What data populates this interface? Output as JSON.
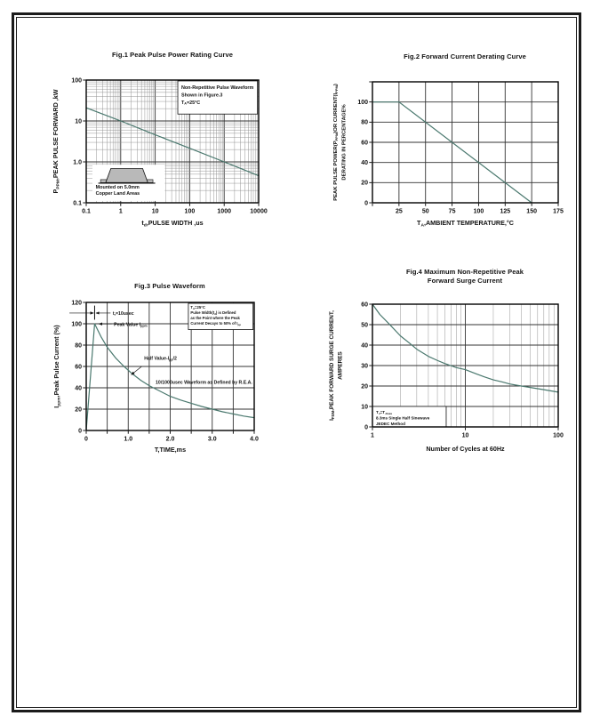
{
  "page": {
    "background": "#ffffff",
    "frame_color": "#1b1b1b"
  },
  "colors": {
    "curve": "#4a786e",
    "grid_major": "#333333",
    "grid_minor": "#8a8a8a",
    "axis": "#000000",
    "text": "#111111"
  },
  "chart_data": [
    {
      "id": "fig1",
      "type": "line",
      "title": "Fig.1  Peak Pulse Power Rating Curve",
      "x": {
        "scale": "log",
        "min": 0.1,
        "max": 10000,
        "ticks": [
          "0.1",
          "1",
          "10",
          "100",
          "1000",
          "10000"
        ],
        "label": "t_{d},PULSE WIDTH ,us"
      },
      "y": {
        "scale": "log",
        "min": 0.1,
        "max": 100,
        "ticks": [
          "100",
          "10",
          "1.0",
          "0.1"
        ],
        "label_lines": [
          "P_{PPM},PEAK PULSE FORWARD ,kW"
        ],
        "label_font": 7.2
      },
      "series": [
        {
          "name": "peak-pulse-power-rating",
          "points": [
            [
              0.1,
              21
            ],
            [
              1,
              10
            ],
            [
              10,
              4.6
            ],
            [
              100,
              2.15
            ],
            [
              1000,
              1.0
            ],
            [
              10000,
              0.46
            ]
          ]
        }
      ],
      "annotations": [
        {
          "kind": "box",
          "fx": 0.531,
          "fy": 0.007,
          "fw": 0.462,
          "fh": 0.27,
          "border": true,
          "font": 5.4,
          "line_h": 8.4,
          "pad_x": 4,
          "pad_y": 9,
          "lines": [
            "Non-Repetitive Pulse Waveform",
            "Shown in Figure.3",
            "T_{A}=25°C"
          ]
        },
        {
          "kind": "box",
          "fx": 0.036,
          "fy": 0.69,
          "fw": 0.42,
          "fh": 0.295,
          "border": false,
          "lines": []
        },
        {
          "kind": "icon",
          "icon": "smd-package-icon",
          "fx": 0.07,
          "fy": 0.705,
          "fw": 0.33,
          "fh": 0.135
        },
        {
          "kind": "text",
          "fx": 0.055,
          "fy": 0.885,
          "anchor": "start",
          "font": 5.4,
          "line_h": 6.8,
          "lines": [
            "Mounted on 5.0mm",
            "Copper Land Areas"
          ]
        }
      ],
      "layout": {
        "plot": {
          "l": 67,
          "t": 40,
          "r": 261,
          "b": 178
        },
        "ylabel_x": 28,
        "xlabel_dy": 25
      }
    },
    {
      "id": "fig2",
      "type": "line",
      "title": "Fig.2  Forward Current Derating Curve",
      "x": {
        "scale": "linear",
        "min": 0,
        "max": 175,
        "grid_step": 25,
        "ticks": [
          "25",
          "50",
          "75",
          "100",
          "125",
          "150",
          "175"
        ],
        "label": "T_{A},AMBIENT TEMPERATURE,°C"
      },
      "y": {
        "scale": "linear",
        "min": 0,
        "max": 120,
        "grid_step": 20,
        "ticks": [
          "0",
          "20",
          "40",
          "60",
          "80",
          "100"
        ],
        "label_lines": [
          "PEAK PULSE POWER(P_{PPM})OR CURRENT(I_{PPM})",
          "DERATING IN PERCENTAGE%"
        ],
        "label_font": 5.9
      },
      "series": [
        {
          "name": "forward-current-derating",
          "points": [
            [
              0,
              100
            ],
            [
              25,
              100
            ],
            [
              150,
              0
            ]
          ]
        }
      ],
      "annotations": [],
      "layout": {
        "plot": {
          "l": 55,
          "t": 42,
          "r": 264,
          "b": 178
        },
        "ylabel_x": 8,
        "xlabel_dy": 25
      }
    },
    {
      "id": "fig3",
      "type": "line",
      "title": "Fig.3  Pulse Waveform",
      "x": {
        "scale": "linear",
        "min": 0,
        "max": 4,
        "grid_step": 0.5,
        "ticks": [
          "0",
          "1.0",
          "2.0",
          "3.0",
          "4.0"
        ],
        "label": "T,TIME,ms"
      },
      "y": {
        "scale": "linear",
        "min": 0,
        "max": 120,
        "grid_step": 20,
        "ticks": [
          "0",
          "20",
          "40",
          "60",
          "80",
          "100",
          "120"
        ],
        "label_lines": [
          "I_{ppm},Peak Pulse Current (%)"
        ],
        "label_font": 7.2
      },
      "series": [
        {
          "name": "pulse-waveform",
          "points": [
            [
              0,
              0
            ],
            [
              0.2,
              100
            ],
            [
              0.35,
              88
            ],
            [
              0.5,
              78
            ],
            [
              0.7,
              68
            ],
            [
              0.9,
              60
            ],
            [
              1.1,
              53
            ],
            [
              1.3,
              47
            ],
            [
              1.5,
              42
            ],
            [
              1.75,
              37
            ],
            [
              2.0,
              32
            ],
            [
              2.25,
              28.5
            ],
            [
              2.5,
              25.5
            ],
            [
              2.75,
              22.5
            ],
            [
              3.0,
              20
            ],
            [
              3.25,
              17.5
            ],
            [
              3.5,
              15.5
            ],
            [
              3.75,
              13.5
            ],
            [
              4.0,
              12
            ]
          ]
        }
      ],
      "annotations": [
        {
          "kind": "box",
          "fx": 0.608,
          "fy": 0.007,
          "fw": 0.385,
          "fh": 0.205,
          "border": true,
          "font": 4.2,
          "line_h": 6.0,
          "pad_x": 2.5,
          "pad_y": 6,
          "lines": [
            "T_{A}=25°C",
            "Pulse Width(t_{d}) is Defined",
            "as the Point where the Peak",
            "Current Decays to 50% of I_{pp}"
          ]
        },
        {
          "kind": "vline",
          "fx": 0.05,
          "fy1": 0.025,
          "fy2": 0.135
        },
        {
          "kind": "arrow",
          "fx1": -0.1,
          "fy1": 0.083,
          "fx2": 0.044,
          "fy2": 0.083
        },
        {
          "kind": "arrow",
          "fx1": 0.145,
          "fy1": 0.083,
          "fx2": 0.058,
          "fy2": 0.083
        },
        {
          "kind": "text",
          "fx": 0.158,
          "fy": 0.098,
          "anchor": "start",
          "font": 5.2,
          "lines": [
            "t_{r}=10usec"
          ]
        },
        {
          "kind": "arrow",
          "fx1": 0.152,
          "fy1": 0.168,
          "fx2": 0.075,
          "fy2": 0.168
        },
        {
          "kind": "text",
          "fx": 0.165,
          "fy": 0.185,
          "anchor": "start",
          "font": 5.2,
          "lines": [
            "Peak  Value   I_{ppm}"
          ]
        },
        {
          "kind": "text",
          "fx": 0.345,
          "fy": 0.448,
          "anchor": "start",
          "font": 5.2,
          "lines": [
            "Half  Value-I_{pp}/2"
          ]
        },
        {
          "kind": "arrow",
          "fx1": 0.33,
          "fy1": 0.5,
          "fx2": 0.268,
          "fy2": 0.565
        },
        {
          "kind": "text",
          "fx": 0.413,
          "fy": 0.635,
          "anchor": "start",
          "font": 5.2,
          "lines": [
            "10/1000usec Waveform as Defined by R.E.A."
          ]
        }
      ],
      "layout": {
        "plot": {
          "l": 67,
          "t": 40,
          "r": 256,
          "b": 184
        },
        "ylabel_x": 29,
        "xlabel_dy": 24
      }
    },
    {
      "id": "fig4",
      "type": "line",
      "title": "Fig.4  Maximum Non-Repetitive Peak\nForward Surge Current",
      "x": {
        "scale": "log",
        "min": 1,
        "max": 100,
        "ticks": [
          "1",
          "10",
          "100"
        ],
        "label": "Number of Cycles at 60Hz"
      },
      "y": {
        "scale": "linear",
        "min": 0,
        "max": 60,
        "grid_step": 10,
        "ticks": [
          "0",
          "10",
          "20",
          "30",
          "40",
          "50",
          "60"
        ],
        "label_lines": [
          "I_{FSM},PEAK FORWARD SURGE CURRENT,",
          "AMPERES"
        ],
        "label_font": 6.4
      },
      "series": [
        {
          "name": "peak-forward-surge-current",
          "points": [
            [
              1,
              60
            ],
            [
              1.2,
              55
            ],
            [
              1.5,
              50.5
            ],
            [
              2,
              44.5
            ],
            [
              2.5,
              41
            ],
            [
              3,
              38
            ],
            [
              4,
              34.5
            ],
            [
              5,
              32.5
            ],
            [
              6,
              31
            ],
            [
              8,
              29
            ],
            [
              10,
              28
            ],
            [
              13,
              26
            ],
            [
              16,
              24.5
            ],
            [
              20,
              23
            ],
            [
              25,
              22
            ],
            [
              30,
              21
            ],
            [
              40,
              20
            ],
            [
              50,
              19.3
            ],
            [
              70,
              18.2
            ],
            [
              100,
              17
            ]
          ]
        }
      ],
      "annotations": [
        {
          "kind": "box",
          "fx": 0.0,
          "fy": 0.833,
          "fw": 0.397,
          "fh": 0.167,
          "border": true,
          "font": 4.6,
          "line_h": 6.4,
          "pad_x": 4,
          "pad_y": 8,
          "lines": [
            "T_{J}=T_{Jmax}",
            "8.3ms Single Half Sinewave",
            "JEDEC Method"
          ]
        }
      ],
      "layout": {
        "plot": {
          "l": 55,
          "t": 47,
          "r": 264,
          "b": 185
        },
        "ylabel_x": 4,
        "xlabel_dy": 27
      }
    }
  ]
}
